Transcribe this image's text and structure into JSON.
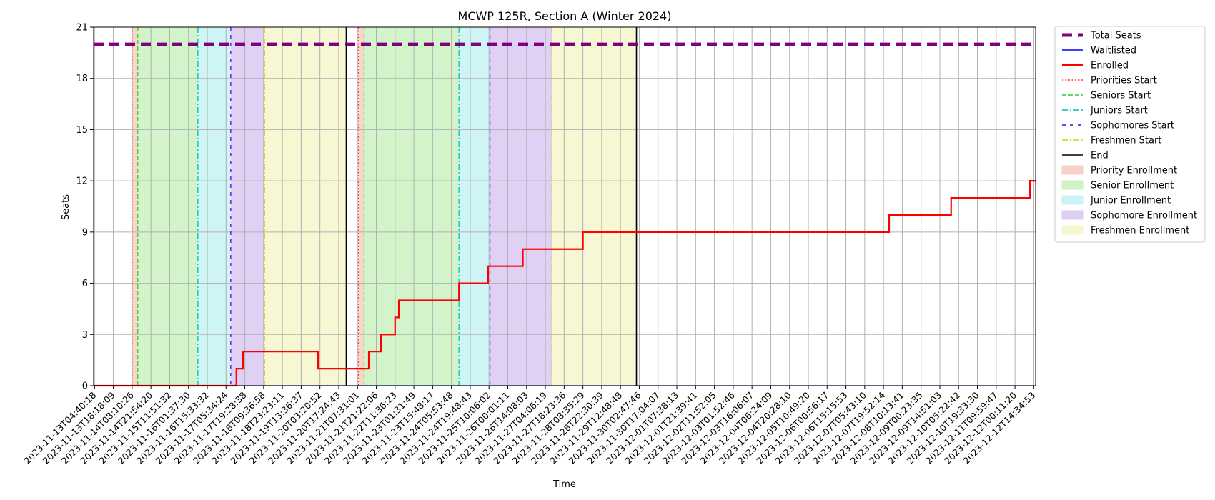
{
  "chart_data": {
    "type": "line",
    "title": "MCWP 125R, Section A (Winter 2024)",
    "xlabel": "Time",
    "ylabel": "Seats",
    "ylim": [
      0,
      21
    ],
    "yticks": [
      0,
      3,
      6,
      9,
      12,
      15,
      18,
      21
    ],
    "grid": true,
    "legend_position": "outside-right-top",
    "x_ticks": [
      "2023-11-13T04:40:18",
      "2023-11-13T18:18:09",
      "2023-11-14T08:10:26",
      "2023-11-14T21:54:20",
      "2023-11-15T11:51:32",
      "2023-11-16T01:37:30",
      "2023-11-16T15:33:32",
      "2023-11-17T05:34:24",
      "2023-11-17T19:28:38",
      "2023-11-18T09:36:58",
      "2023-11-18T23:23:11",
      "2023-11-19T13:36:37",
      "2023-11-20T03:20:52",
      "2023-11-20T17:24:43",
      "2023-11-21T07:31:01",
      "2023-11-21T21:22:06",
      "2023-11-22T11:36:23",
      "2023-11-23T01:31:49",
      "2023-11-23T15:48:17",
      "2023-11-24T05:53:48",
      "2023-11-24T19:48:43",
      "2023-11-25T10:06:02",
      "2023-11-26T00:01:11",
      "2023-11-26T14:08:03",
      "2023-11-27T04:06:19",
      "2023-11-27T18:23:36",
      "2023-11-28T08:35:29",
      "2023-11-28T22:30:39",
      "2023-11-29T12:48:48",
      "2023-11-30T02:47:46",
      "2023-11-30T17:04:07",
      "2023-12-01T07:38:13",
      "2023-12-01T21:39:41",
      "2023-12-02T11:52:05",
      "2023-12-03T01:52:46",
      "2023-12-03T16:06:07",
      "2023-12-04T06:24:09",
      "2023-12-04T20:28:10",
      "2023-12-05T10:49:20",
      "2023-12-06T00:56:17",
      "2023-12-06T15:15:53",
      "2023-12-07T05:43:10",
      "2023-12-07T19:52:14",
      "2023-12-08T10:13:41",
      "2023-12-09T00:23:35",
      "2023-12-09T14:51:03",
      "2023-12-10T05:22:42",
      "2023-12-10T19:33:30",
      "2023-12-11T09:59:47",
      "2023-12-12T00:11:20",
      "2023-12-12T14:34:53"
    ],
    "x_range_ticks": [
      -0.05,
      50.1
    ],
    "series": [
      {
        "name": "Total Seats",
        "color": "#800080",
        "style": "dashed-thick",
        "x": [
          -0.05,
          50.1
        ],
        "y": [
          20,
          20
        ]
      },
      {
        "name": "Waitlisted",
        "color": "#0000ff",
        "style": "solid",
        "x": [
          -0.05,
          50.1
        ],
        "y": [
          0,
          0
        ]
      },
      {
        "name": "Enrolled",
        "color": "#ff0000",
        "style": "step",
        "x": [
          -0.05,
          7.55,
          7.9,
          8.2,
          11.9,
          14.6,
          15.25,
          16.0,
          16.2,
          16.45,
          19.4,
          20.95,
          22.8,
          26.0,
          42.3,
          45.6,
          49.8,
          50.1
        ],
        "y": [
          0,
          1,
          2,
          2,
          1,
          2,
          3,
          4,
          5,
          5,
          6,
          7,
          8,
          9,
          10,
          11,
          12,
          12
        ]
      }
    ],
    "phase_markers": [
      {
        "name": "Priorities Start",
        "color": "#ff3333",
        "style": "dotted",
        "x": [
          2.0,
          14.05
        ]
      },
      {
        "name": "Seniors Start",
        "color": "#33cc33",
        "style": "dashed",
        "x": [
          2.3,
          14.35
        ]
      },
      {
        "name": "Juniors Start",
        "color": "#00c0c0",
        "style": "dashdot",
        "x": [
          5.5,
          19.4
        ]
      },
      {
        "name": "Sophomores Start",
        "color": "#5500ee",
        "style": "loosedash",
        "x": [
          7.25,
          21.05
        ]
      },
      {
        "name": "Freshmen Start",
        "color": "#d8cc00",
        "style": "dashdot",
        "x": [
          9.05,
          24.35
        ]
      },
      {
        "name": "End",
        "color": "#000000",
        "style": "solid",
        "x": [
          13.4,
          28.85
        ]
      }
    ],
    "phase_regions": [
      {
        "name": "Priority Enrollment",
        "color": "#f7c8b8",
        "ranges": [
          [
            2.0,
            2.3
          ],
          [
            14.05,
            14.35
          ]
        ]
      },
      {
        "name": "Senior Enrollment",
        "color": "#c4f0b8",
        "ranges": [
          [
            2.3,
            5.5
          ],
          [
            14.35,
            19.4
          ]
        ]
      },
      {
        "name": "Junior Enrollment",
        "color": "#bff0f2",
        "ranges": [
          [
            5.5,
            7.25
          ],
          [
            19.4,
            21.05
          ]
        ]
      },
      {
        "name": "Sophomore Enrollment",
        "color": "#d6c2f0",
        "ranges": [
          [
            7.25,
            9.05
          ],
          [
            21.05,
            24.35
          ]
        ]
      },
      {
        "name": "Freshmen Enrollment",
        "color": "#f4f4c6",
        "ranges": [
          [
            9.05,
            13.4
          ],
          [
            24.35,
            28.85
          ]
        ]
      }
    ]
  }
}
